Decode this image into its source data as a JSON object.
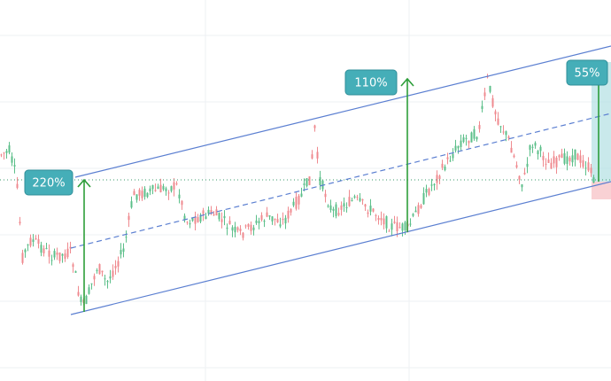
{
  "annotations": [
    {
      "label": "220%"
    },
    {
      "label": "110%"
    },
    {
      "label": "55%"
    }
  ]
}
